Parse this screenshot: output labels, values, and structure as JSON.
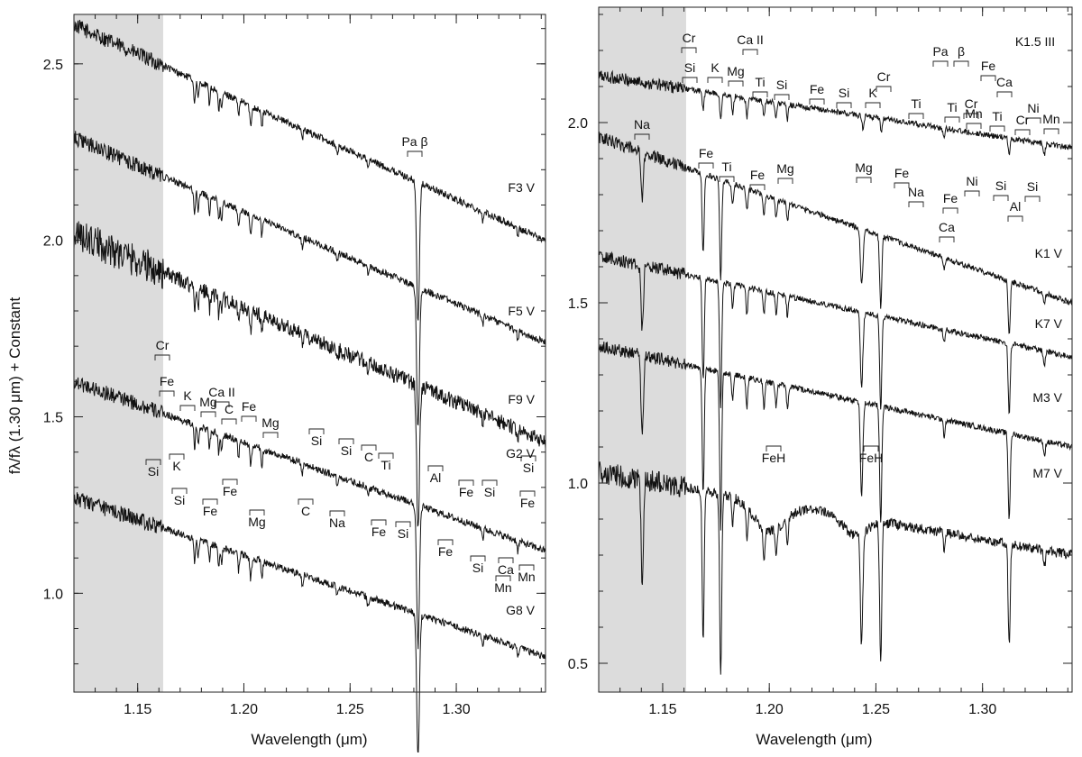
{
  "y_axis_label": "fλ/fλ (1.30 μm) + Constant",
  "chart_data": [
    {
      "type": "line",
      "xlabel": "Wavelength (μm)",
      "xlim": [
        1.12,
        1.342
      ],
      "ylim": [
        0.72,
        2.64
      ],
      "x_ticks": [
        "1.15",
        "1.20",
        "1.25",
        "1.30"
      ],
      "y_ticks": [
        "1.0",
        "1.5",
        "2.0",
        "2.5"
      ],
      "shaded_region": [
        1.12,
        1.162
      ],
      "series": [
        {
          "name": "F3 V",
          "y_start": 2.61,
          "y_end": 2.0,
          "noise": 0.01
        },
        {
          "name": "F5 V",
          "y_start": 2.29,
          "y_end": 1.71,
          "noise": 0.01
        },
        {
          "name": "F9 V",
          "y_start": 2.02,
          "y_end": 1.43,
          "noise": 0.022
        },
        {
          "name": "G2 V",
          "y_start": 1.6,
          "y_end": 1.12,
          "noise": 0.01
        },
        {
          "name": "G8 V",
          "y_start": 1.27,
          "y_end": 0.82,
          "noise": 0.01
        }
      ],
      "line_labels": [
        "Pa β",
        "Cr",
        "Fe",
        "K",
        "Mg",
        "Ca II",
        "C",
        "Fe",
        "Mg",
        "Si",
        "Si",
        "C",
        "Ti",
        "Fe",
        "Si",
        "Si",
        "K",
        "Si",
        "Fe",
        "Fe",
        "Mg",
        "C",
        "Na",
        "Fe",
        "Si",
        "Al",
        "Fe",
        "Si",
        "Mn",
        "Ca",
        "Si",
        "Fe",
        "Mn"
      ]
    },
    {
      "type": "line",
      "xlabel": "Wavelength (μm)",
      "xlim": [
        1.12,
        1.342
      ],
      "ylim": [
        0.42,
        2.32
      ],
      "x_ticks": [
        "1.15",
        "1.20",
        "1.25",
        "1.30"
      ],
      "y_ticks": [
        "0.5",
        "1.0",
        "1.5",
        "2.0"
      ],
      "shaded_region": [
        1.12,
        1.161
      ],
      "series": [
        {
          "name": "K1.5 III",
          "y_start": 2.13,
          "y_end": 1.93,
          "noise": 0.008
        },
        {
          "name": "K1 V",
          "y_start": 1.96,
          "y_end": 1.5,
          "noise": 0.008
        },
        {
          "name": "K7 V",
          "y_start": 1.63,
          "y_end": 1.35,
          "noise": 0.008
        },
        {
          "name": "M3 V",
          "y_start": 1.38,
          "y_end": 1.1,
          "noise": 0.008
        },
        {
          "name": "M7 V",
          "y_start": 1.03,
          "y_end": 0.8,
          "noise": 0.014
        }
      ],
      "line_labels": [
        "Na",
        "Cr",
        "Si",
        "K",
        "Mg",
        "Ca II",
        "Ti",
        "Si",
        "Fe",
        "Si",
        "K",
        "Cr",
        "Ti",
        "Pa",
        "β",
        "K1.5 III",
        "Cr",
        "Fe",
        "Ca",
        "Ti",
        "Mn",
        "Ti",
        "Cr",
        "Ni",
        "Mn",
        "Fe",
        "Ti",
        "Fe",
        "Mg",
        "Mg",
        "Fe",
        "Na",
        "Fe",
        "Ni",
        "Si",
        "Si",
        "Al",
        "Ca",
        "FeH",
        "FeH"
      ]
    }
  ]
}
